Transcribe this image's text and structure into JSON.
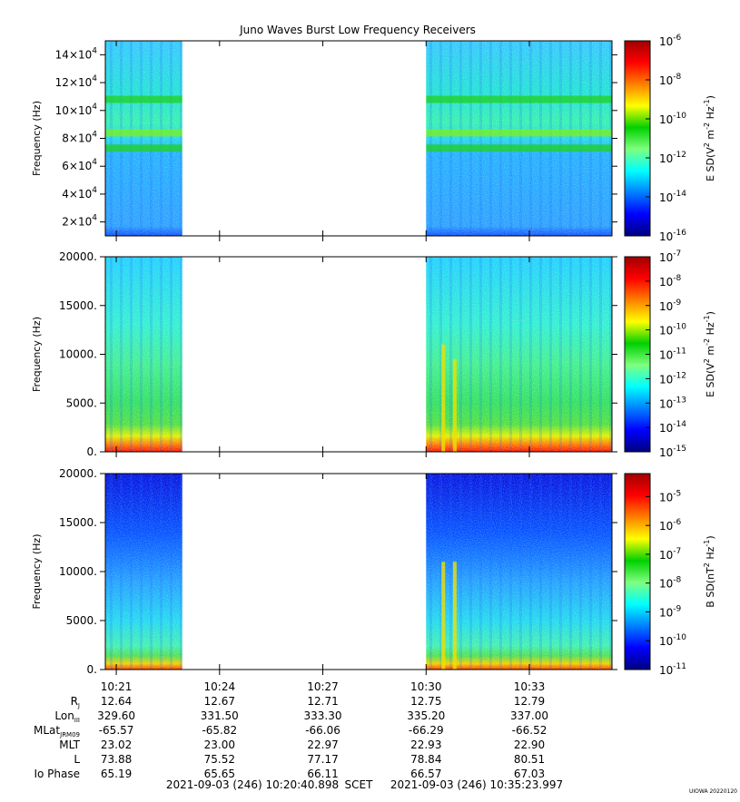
{
  "title": "Juno Waves Burst Low Frequency Receivers",
  "colors": {
    "jet": [
      "#00007f",
      "#0000ff",
      "#007fff",
      "#00ffff",
      "#7fff7f",
      "#00d000",
      "#ffff00",
      "#ff7f00",
      "#ff0000",
      "#a00000"
    ]
  },
  "chart_data": [
    {
      "type": "heatmap",
      "panel": "top",
      "ylabel": "Frequency (Hz)",
      "ylim": [
        10000,
        150000
      ],
      "yticks": [
        {
          "v": 20000,
          "m": "2×10",
          "e": "4"
        },
        {
          "v": 40000,
          "m": "4×10",
          "e": "4"
        },
        {
          "v": 60000,
          "m": "6×10",
          "e": "4"
        },
        {
          "v": 80000,
          "m": "8×10",
          "e": "4"
        },
        {
          "v": 100000,
          "m": "10×10",
          "e": "4"
        },
        {
          "v": 120000,
          "m": "12×10",
          "e": "4"
        },
        {
          "v": 140000,
          "m": "14×10",
          "e": "4"
        }
      ],
      "data_gap": [
        "10:22:55",
        "10:30:00"
      ],
      "features": [
        {
          "label": "emission band",
          "freq_hz": 108000,
          "level": "green"
        },
        {
          "label": "emission band",
          "freq_hz": 84000,
          "level": "green-yellow"
        },
        {
          "label": "emission band",
          "freq_hz": 73000,
          "level": "green"
        }
      ],
      "colorbar": {
        "label_base": "E SD(V",
        "label_sup1": "2",
        "label_mid": " m",
        "label_sup2": "-2",
        "label_mid2": " Hz",
        "label_sup3": "-1",
        "label_end": ")",
        "log_min": -16,
        "log_max": -6,
        "ticks": [
          -6,
          -8,
          -10,
          -12,
          -14,
          -16
        ]
      }
    },
    {
      "type": "heatmap",
      "panel": "middle",
      "ylabel": "Frequency (Hz)",
      "ylim": [
        0,
        20000
      ],
      "yticks": [
        {
          "v": 0,
          "t": "0."
        },
        {
          "v": 5000,
          "t": "5000."
        },
        {
          "v": 10000,
          "t": "10000."
        },
        {
          "v": 15000,
          "t": "15000."
        },
        {
          "v": 20000,
          "t": "20000."
        }
      ],
      "data_gap": [
        "10:22:55",
        "10:30:00"
      ],
      "features": [
        {
          "label": "burst",
          "time": "10:30:30",
          "freq_max_hz": 11000
        },
        {
          "label": "burst",
          "time": "10:30:50",
          "freq_max_hz": 9500
        }
      ],
      "colorbar": {
        "label_base": "E SD(V",
        "label_sup1": "2",
        "label_mid": " m",
        "label_sup2": "-2",
        "label_mid2": " Hz",
        "label_sup3": "-1",
        "label_end": ")",
        "log_min": -15,
        "log_max": -7,
        "ticks": [
          -7,
          -8,
          -9,
          -10,
          -11,
          -12,
          -13,
          -14,
          -15
        ]
      }
    },
    {
      "type": "heatmap",
      "panel": "bottom",
      "ylabel": "Frequency (Hz)",
      "ylim": [
        0,
        20000
      ],
      "yticks": [
        {
          "v": 0,
          "t": "0."
        },
        {
          "v": 5000,
          "t": "5000."
        },
        {
          "v": 10000,
          "t": "10000."
        },
        {
          "v": 15000,
          "t": "15000."
        },
        {
          "v": 20000,
          "t": "20000."
        }
      ],
      "data_gap": [
        "10:22:55",
        "10:30:00"
      ],
      "features": [
        {
          "label": "burst",
          "time": "10:30:30",
          "freq_max_hz": 11000
        },
        {
          "label": "burst",
          "time": "10:30:50",
          "freq_max_hz": 11000
        }
      ],
      "colorbar": {
        "label_base": "B SD(nT",
        "label_sup1": "2",
        "label_mid": " Hz",
        "label_sup2": "-1",
        "label_mid2": "",
        "label_sup3": "",
        "label_end": ")",
        "log_min": -11,
        "log_max": -4.2,
        "ticks": [
          -5,
          -6,
          -7,
          -8,
          -9,
          -10,
          -11
        ]
      }
    }
  ],
  "xaxis": {
    "start": "10:20:40.898",
    "end": "10:35:23.997",
    "ticks": [
      "10:21",
      "10:24",
      "10:27",
      "10:30",
      "10:33"
    ]
  },
  "ephemeris": {
    "rows": [
      {
        "label": "R",
        "sub": "J",
        "sup": "",
        "values": [
          "12.64",
          "12.67",
          "12.71",
          "12.75",
          "12.79"
        ]
      },
      {
        "label": "Lon",
        "sub": "III",
        "sup": "",
        "values": [
          "329.60",
          "331.50",
          "333.30",
          "335.20",
          "337.00"
        ]
      },
      {
        "label": "MLat",
        "sub": "JRM09",
        "sup": "",
        "values": [
          "-65.57",
          "-65.82",
          "-66.06",
          "-66.29",
          "-66.52"
        ]
      },
      {
        "label": "MLT",
        "sub": "",
        "sup": "",
        "values": [
          "23.02",
          "23.00",
          "22.97",
          "22.93",
          "22.90"
        ]
      },
      {
        "label": "L",
        "sub": "",
        "sup": "",
        "values": [
          "73.88",
          "75.52",
          "77.17",
          "78.84",
          "80.51"
        ]
      },
      {
        "label": "Io Phase",
        "sub": "",
        "sup": "",
        "values": [
          "65.19",
          "65.65",
          "66.11",
          "66.57",
          "67.03"
        ]
      }
    ]
  },
  "footer": {
    "start": "2021-09-03 (246) 10:20:40.898",
    "scet": "SCET",
    "end": "2021-09-03 (246) 10:35:23.997",
    "version": "UIOWA 20220120"
  }
}
